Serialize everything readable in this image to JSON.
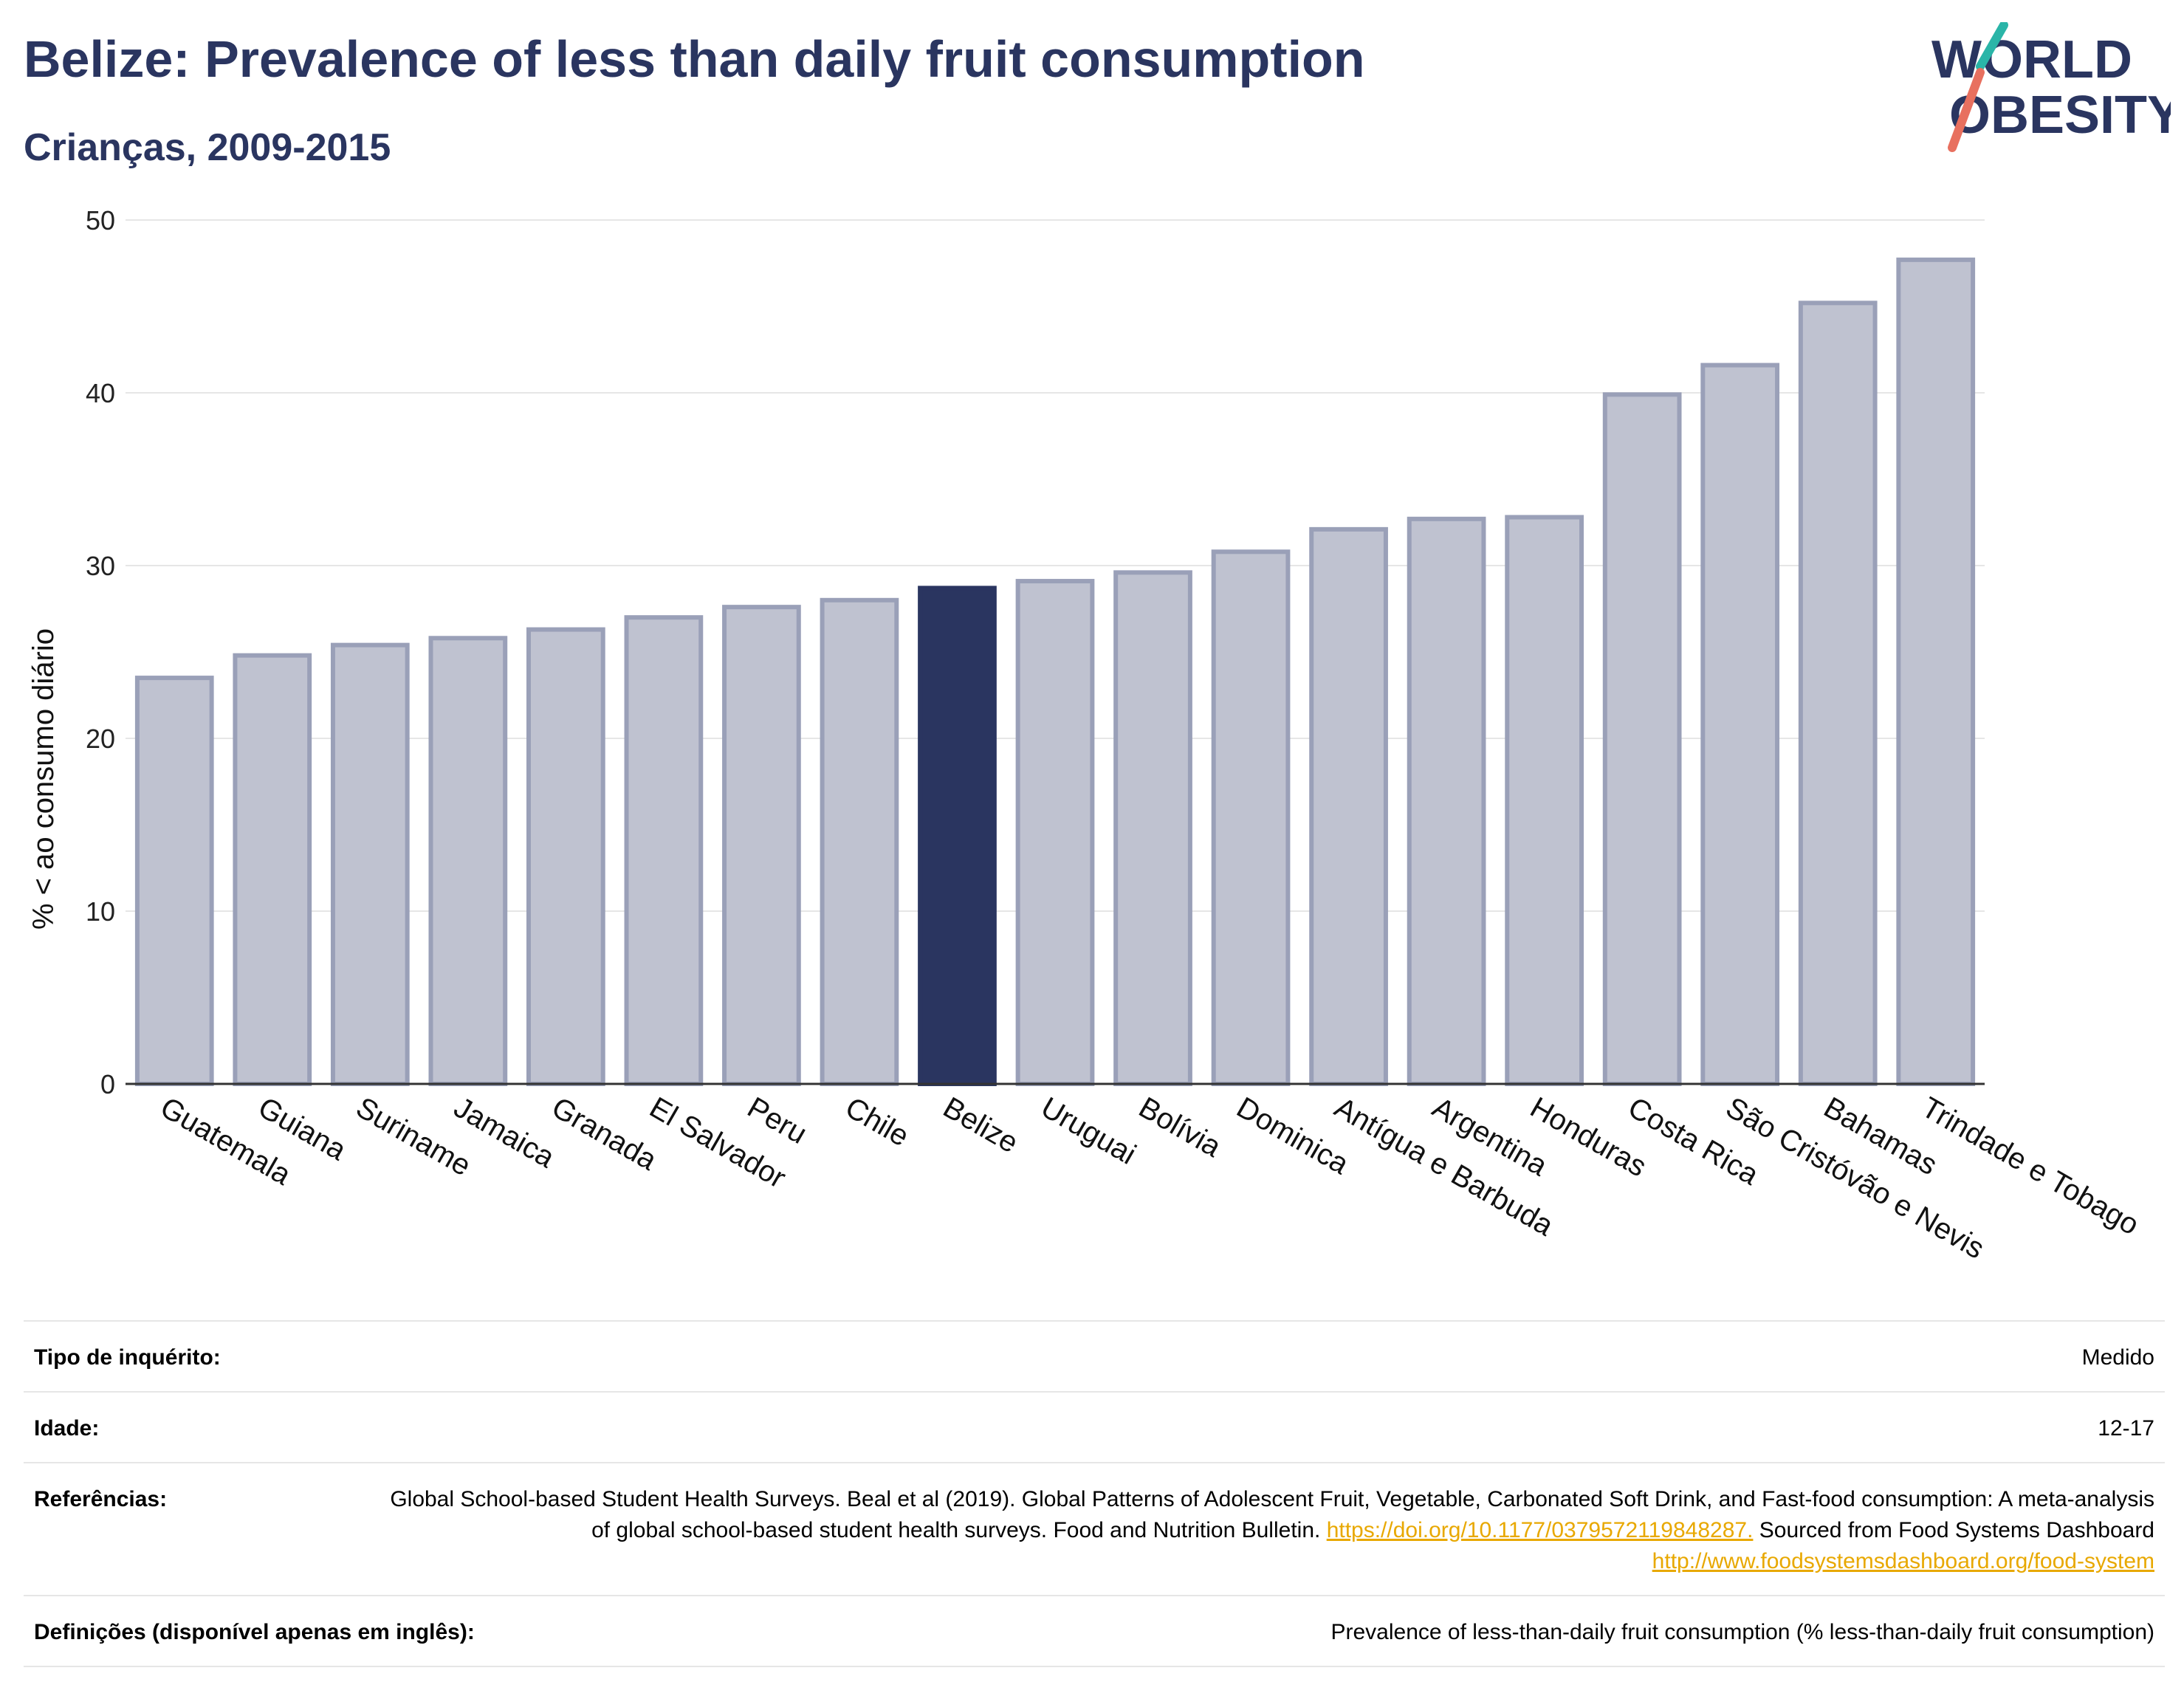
{
  "header": {
    "title": "Belize: Prevalence of less than daily fruit consumption",
    "subtitle": "Crianças, 2009-2015",
    "logo_line1": "WORLD",
    "logo_line2": "OBESITY"
  },
  "chart_data": {
    "type": "bar",
    "title": "Belize: Prevalence of less than daily fruit consumption",
    "subtitle": "Crianças, 2009-2015",
    "xlabel": "",
    "ylabel": "% < ao consumo diário",
    "ylim": [
      0,
      50
    ],
    "yticks": [
      0,
      10,
      20,
      30,
      40,
      50
    ],
    "grid": true,
    "highlight": "Belize",
    "colors": {
      "bar": "#2a3560",
      "bar_fill_muted": "#bfc2d0",
      "bar_stroke_muted": "#9aa0b8",
      "grid": "#e6e6e6",
      "axis": "#333333"
    },
    "categories": [
      "Guatemala",
      "Guiana",
      "Suriname",
      "Jamaica",
      "Granada",
      "El Salvador",
      "Peru",
      "Chile",
      "Belize",
      "Uruguai",
      "Bolívia",
      "Dominica",
      "Antígua e Barbuda",
      "Argentina",
      "Honduras",
      "Costa Rica",
      "São Cristóvão e Nevis",
      "Bahamas",
      "Trindade e Tobago"
    ],
    "values": [
      23.5,
      24.8,
      25.4,
      25.8,
      26.3,
      27.0,
      27.6,
      28.0,
      28.7,
      29.1,
      29.6,
      30.8,
      32.1,
      32.7,
      32.8,
      39.9,
      41.6,
      45.2,
      47.7
    ]
  },
  "meta": {
    "rows": [
      {
        "label": "Tipo de inquérito:",
        "value": "Medido"
      },
      {
        "label": "Idade:",
        "value": "12-17"
      },
      {
        "label": "Referências:",
        "text1": "Global School-based Student Health Surveys. Beal et al (2019). Global Patterns of Adolescent Fruit, Vegetable, Carbonated Soft Drink, and Fast-food consumption: A meta-analysis of global school-based student health surveys. Food and Nutrition Bulletin.",
        "link1": "https://doi.org/10.1177/0379572119848287.",
        "text2": " Sourced from Food Systems Dashboard ",
        "link2": "http://www.foodsystemsdashboard.org/food-system"
      },
      {
        "label": "Definições (disponível apenas em inglês):",
        "value": "Prevalence of less-than-daily fruit consumption (% less-than-daily fruit consumption)"
      }
    ]
  }
}
